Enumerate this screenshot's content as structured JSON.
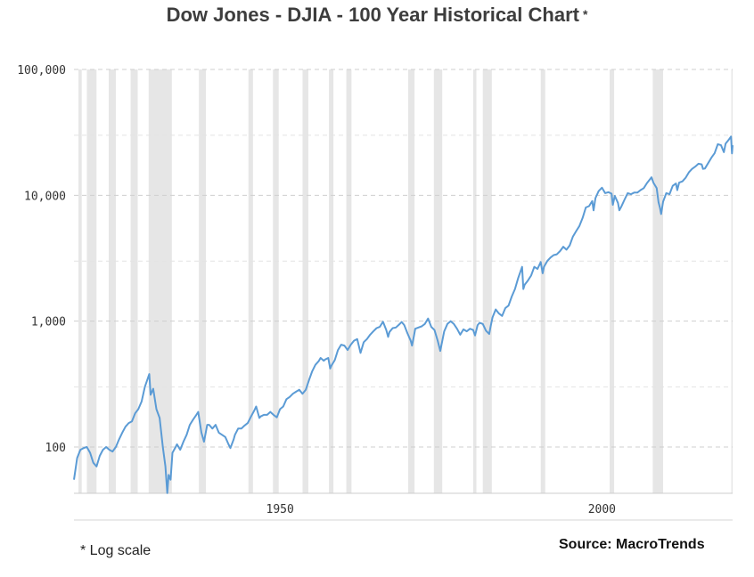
{
  "chart_data": {
    "type": "line",
    "title": "Dow Jones - DJIA - 100 Year Historical Chart",
    "title_marker": "*",
    "scale": "log",
    "xlabel": "",
    "ylabel": "",
    "xlim": [
      1918,
      2020.3
    ],
    "ylim": [
      43,
      100000
    ],
    "y_ticks": [
      {
        "value": 100,
        "label": "100"
      },
      {
        "value": 1000,
        "label": "1,000"
      },
      {
        "value": 10000,
        "label": "10,000"
      },
      {
        "value": 100000,
        "label": "100,000"
      }
    ],
    "x_ticks": [
      {
        "value": 1950,
        "label": "1950"
      },
      {
        "value": 2000,
        "label": "2000"
      }
    ],
    "grid": "horizontal dashed",
    "recession_periods": [
      [
        1918.7,
        1919.2
      ],
      [
        1920.0,
        1921.5
      ],
      [
        1923.4,
        1924.5
      ],
      [
        1926.8,
        1927.9
      ],
      [
        1929.6,
        1933.2
      ],
      [
        1937.4,
        1938.5
      ],
      [
        1945.1,
        1945.8
      ],
      [
        1948.9,
        1949.8
      ],
      [
        1953.5,
        1954.4
      ],
      [
        1957.6,
        1958.3
      ],
      [
        1960.3,
        1961.1
      ],
      [
        1969.9,
        1970.9
      ],
      [
        1973.9,
        1975.2
      ],
      [
        1980.0,
        1980.5
      ],
      [
        1981.5,
        1982.9
      ],
      [
        1990.5,
        1991.2
      ],
      [
        2001.2,
        2001.9
      ],
      [
        2007.9,
        2009.5
      ],
      [
        2020.1,
        2020.3
      ]
    ],
    "series": [
      {
        "name": "DJIA",
        "color": "#5b9bd5",
        "points": [
          [
            1918.0,
            55
          ],
          [
            1918.5,
            82
          ],
          [
            1919.0,
            95
          ],
          [
            1919.5,
            98
          ],
          [
            1920.0,
            100
          ],
          [
            1920.5,
            90
          ],
          [
            1921.0,
            75
          ],
          [
            1921.5,
            70
          ],
          [
            1922.0,
            85
          ],
          [
            1922.5,
            95
          ],
          [
            1923.0,
            100
          ],
          [
            1923.5,
            95
          ],
          [
            1924.0,
            92
          ],
          [
            1924.5,
            100
          ],
          [
            1925.0,
            115
          ],
          [
            1925.5,
            130
          ],
          [
            1926.0,
            145
          ],
          [
            1926.5,
            155
          ],
          [
            1927.0,
            160
          ],
          [
            1927.5,
            185
          ],
          [
            1928.0,
            200
          ],
          [
            1928.5,
            230
          ],
          [
            1929.0,
            300
          ],
          [
            1929.7,
            380
          ],
          [
            1929.9,
            260
          ],
          [
            1930.3,
            290
          ],
          [
            1930.8,
            200
          ],
          [
            1931.3,
            170
          ],
          [
            1931.8,
            100
          ],
          [
            1932.2,
            70
          ],
          [
            1932.5,
            43
          ],
          [
            1932.7,
            60
          ],
          [
            1933.0,
            55
          ],
          [
            1933.3,
            90
          ],
          [
            1933.8,
            100
          ],
          [
            1934.0,
            105
          ],
          [
            1934.5,
            95
          ],
          [
            1935.0,
            110
          ],
          [
            1935.5,
            125
          ],
          [
            1936.0,
            150
          ],
          [
            1936.5,
            165
          ],
          [
            1937.0,
            180
          ],
          [
            1937.3,
            190
          ],
          [
            1937.8,
            130
          ],
          [
            1938.2,
            110
          ],
          [
            1938.7,
            150
          ],
          [
            1939.0,
            150
          ],
          [
            1939.5,
            140
          ],
          [
            1940.0,
            150
          ],
          [
            1940.5,
            130
          ],
          [
            1941.0,
            125
          ],
          [
            1941.5,
            120
          ],
          [
            1942.0,
            105
          ],
          [
            1942.3,
            98
          ],
          [
            1942.8,
            115
          ],
          [
            1943.0,
            125
          ],
          [
            1943.5,
            140
          ],
          [
            1944.0,
            140
          ],
          [
            1944.5,
            148
          ],
          [
            1945.0,
            155
          ],
          [
            1945.5,
            175
          ],
          [
            1946.0,
            195
          ],
          [
            1946.3,
            210
          ],
          [
            1946.8,
            170
          ],
          [
            1947.0,
            175
          ],
          [
            1947.5,
            180
          ],
          [
            1948.0,
            180
          ],
          [
            1948.5,
            190
          ],
          [
            1949.0,
            180
          ],
          [
            1949.5,
            172
          ],
          [
            1950.0,
            200
          ],
          [
            1950.5,
            210
          ],
          [
            1951.0,
            240
          ],
          [
            1951.5,
            250
          ],
          [
            1952.0,
            265
          ],
          [
            1952.5,
            275
          ],
          [
            1953.0,
            285
          ],
          [
            1953.5,
            265
          ],
          [
            1954.0,
            285
          ],
          [
            1954.5,
            340
          ],
          [
            1955.0,
            400
          ],
          [
            1955.5,
            450
          ],
          [
            1956.0,
            480
          ],
          [
            1956.3,
            510
          ],
          [
            1956.8,
            485
          ],
          [
            1957.0,
            495
          ],
          [
            1957.5,
            510
          ],
          [
            1957.8,
            420
          ],
          [
            1958.0,
            445
          ],
          [
            1958.5,
            490
          ],
          [
            1959.0,
            590
          ],
          [
            1959.5,
            650
          ],
          [
            1960.0,
            640
          ],
          [
            1960.5,
            590
          ],
          [
            1961.0,
            650
          ],
          [
            1961.5,
            700
          ],
          [
            1962.0,
            720
          ],
          [
            1962.5,
            560
          ],
          [
            1963.0,
            680
          ],
          [
            1963.5,
            720
          ],
          [
            1964.0,
            780
          ],
          [
            1964.5,
            830
          ],
          [
            1965.0,
            880
          ],
          [
            1965.5,
            900
          ],
          [
            1966.0,
            990
          ],
          [
            1966.5,
            850
          ],
          [
            1966.8,
            750
          ],
          [
            1967.0,
            820
          ],
          [
            1967.5,
            880
          ],
          [
            1968.0,
            890
          ],
          [
            1968.5,
            940
          ],
          [
            1968.9,
            985
          ],
          [
            1969.3,
            930
          ],
          [
            1969.8,
            800
          ],
          [
            1970.3,
            700
          ],
          [
            1970.5,
            640
          ],
          [
            1970.8,
            760
          ],
          [
            1971.0,
            870
          ],
          [
            1971.5,
            890
          ],
          [
            1972.0,
            910
          ],
          [
            1972.5,
            950
          ],
          [
            1973.0,
            1050
          ],
          [
            1973.5,
            900
          ],
          [
            1974.0,
            850
          ],
          [
            1974.5,
            700
          ],
          [
            1974.9,
            580
          ],
          [
            1975.0,
            620
          ],
          [
            1975.5,
            830
          ],
          [
            1976.0,
            950
          ],
          [
            1976.5,
            1000
          ],
          [
            1977.0,
            950
          ],
          [
            1977.5,
            870
          ],
          [
            1978.0,
            780
          ],
          [
            1978.5,
            860
          ],
          [
            1979.0,
            830
          ],
          [
            1979.5,
            870
          ],
          [
            1980.0,
            850
          ],
          [
            1980.3,
            770
          ],
          [
            1980.7,
            930
          ],
          [
            1981.0,
            970
          ],
          [
            1981.5,
            950
          ],
          [
            1982.0,
            840
          ],
          [
            1982.5,
            790
          ],
          [
            1982.7,
            900
          ],
          [
            1983.0,
            1070
          ],
          [
            1983.5,
            1240
          ],
          [
            1984.0,
            1150
          ],
          [
            1984.5,
            1100
          ],
          [
            1985.0,
            1270
          ],
          [
            1985.5,
            1330
          ],
          [
            1986.0,
            1570
          ],
          [
            1986.5,
            1800
          ],
          [
            1987.0,
            2200
          ],
          [
            1987.6,
            2700
          ],
          [
            1987.8,
            1800
          ],
          [
            1988.0,
            1950
          ],
          [
            1988.5,
            2100
          ],
          [
            1989.0,
            2300
          ],
          [
            1989.5,
            2700
          ],
          [
            1990.0,
            2600
          ],
          [
            1990.5,
            2950
          ],
          [
            1990.8,
            2400
          ],
          [
            1991.0,
            2700
          ],
          [
            1991.5,
            3000
          ],
          [
            1992.0,
            3200
          ],
          [
            1992.5,
            3350
          ],
          [
            1993.0,
            3400
          ],
          [
            1993.5,
            3600
          ],
          [
            1994.0,
            3900
          ],
          [
            1994.5,
            3700
          ],
          [
            1995.0,
            4000
          ],
          [
            1995.5,
            4700
          ],
          [
            1996.0,
            5200
          ],
          [
            1996.5,
            5700
          ],
          [
            1997.0,
            6600
          ],
          [
            1997.5,
            8000
          ],
          [
            1998.0,
            8200
          ],
          [
            1998.5,
            9000
          ],
          [
            1998.7,
            7600
          ],
          [
            1999.0,
            9500
          ],
          [
            1999.5,
            10800
          ],
          [
            2000.0,
            11500
          ],
          [
            2000.5,
            10400
          ],
          [
            2001.0,
            10600
          ],
          [
            2001.5,
            10300
          ],
          [
            2001.7,
            8400
          ],
          [
            2002.0,
            9900
          ],
          [
            2002.5,
            8700
          ],
          [
            2002.7,
            7600
          ],
          [
            2003.0,
            8100
          ],
          [
            2003.5,
            9200
          ],
          [
            2004.0,
            10400
          ],
          [
            2004.5,
            10200
          ],
          [
            2005.0,
            10500
          ],
          [
            2005.5,
            10500
          ],
          [
            2006.0,
            11000
          ],
          [
            2006.5,
            11400
          ],
          [
            2007.0,
            12500
          ],
          [
            2007.7,
            13900
          ],
          [
            2008.0,
            12600
          ],
          [
            2008.5,
            11400
          ],
          [
            2008.8,
            8800
          ],
          [
            2009.0,
            8000
          ],
          [
            2009.2,
            7100
          ],
          [
            2009.5,
            8900
          ],
          [
            2010.0,
            10400
          ],
          [
            2010.5,
            10200
          ],
          [
            2011.0,
            11900
          ],
          [
            2011.5,
            12400
          ],
          [
            2011.7,
            11000
          ],
          [
            2012.0,
            12600
          ],
          [
            2012.5,
            12900
          ],
          [
            2013.0,
            13800
          ],
          [
            2013.5,
            15200
          ],
          [
            2014.0,
            16200
          ],
          [
            2014.5,
            16900
          ],
          [
            2015.0,
            17800
          ],
          [
            2015.5,
            17600
          ],
          [
            2015.7,
            16200
          ],
          [
            2016.0,
            16300
          ],
          [
            2016.5,
            18000
          ],
          [
            2017.0,
            19900
          ],
          [
            2017.5,
            21600
          ],
          [
            2018.0,
            25500
          ],
          [
            2018.5,
            25000
          ],
          [
            2018.95,
            22000
          ],
          [
            2019.2,
            25700
          ],
          [
            2019.5,
            26800
          ],
          [
            2019.9,
            28500
          ],
          [
            2020.05,
            29300
          ],
          [
            2020.2,
            21500
          ],
          [
            2020.3,
            25000
          ]
        ]
      }
    ]
  },
  "footer": {
    "note": "* Log scale",
    "source": "Source: MacroTrends"
  }
}
